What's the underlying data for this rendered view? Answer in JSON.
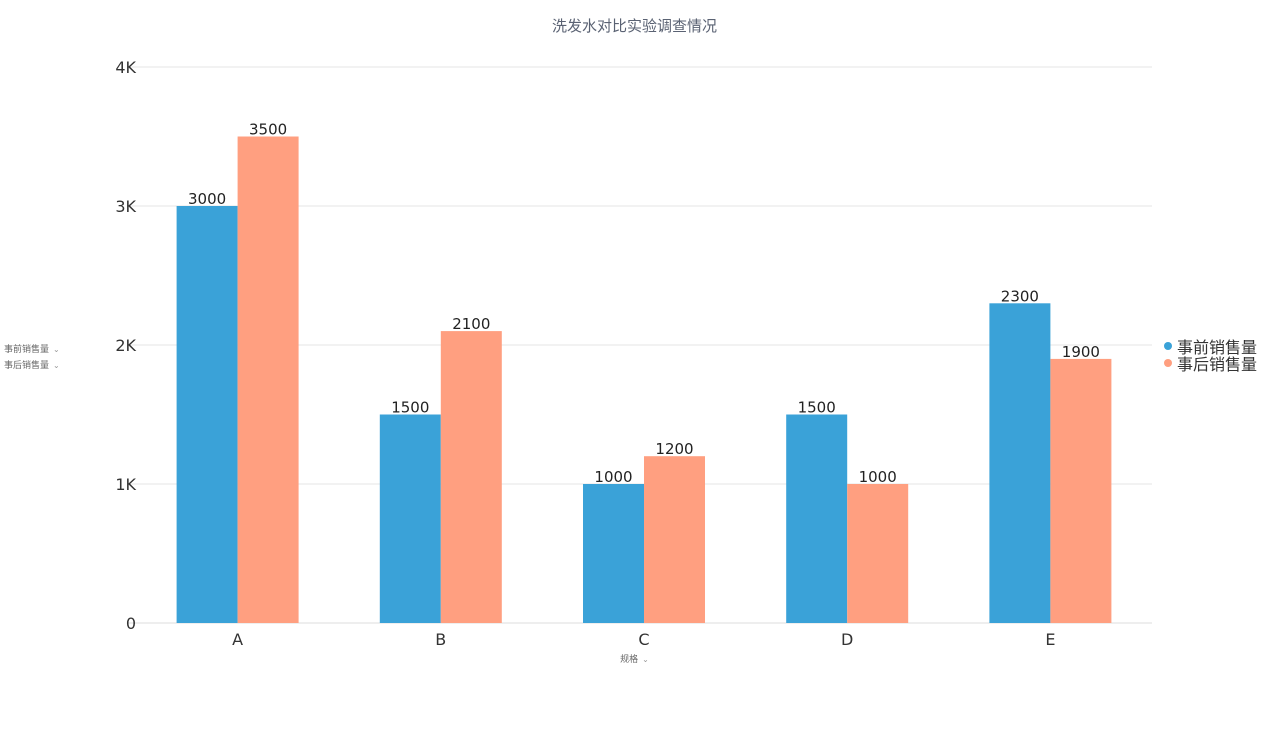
{
  "chart_data": {
    "type": "bar",
    "title": "洗发水对比实验调查情况",
    "xlabel": "规格",
    "categories": [
      "A",
      "B",
      "C",
      "D",
      "E"
    ],
    "series": [
      {
        "name": "事前销售量",
        "values": [
          3000,
          1500,
          1000,
          1500,
          2300
        ],
        "color": "#3aa2d8"
      },
      {
        "name": "事后销售量",
        "values": [
          3500,
          2100,
          1200,
          1000,
          1900
        ],
        "color": "#ff9f80"
      }
    ],
    "ylim": [
      0,
      4000
    ],
    "yticks": [
      0,
      1000,
      2000,
      3000,
      4000
    ],
    "ytick_labels": [
      "0",
      "1K",
      "2K",
      "3K",
      "4K"
    ],
    "grid": true,
    "legend_position": "right"
  },
  "ui": {
    "chevron_glyph": "⌄"
  }
}
